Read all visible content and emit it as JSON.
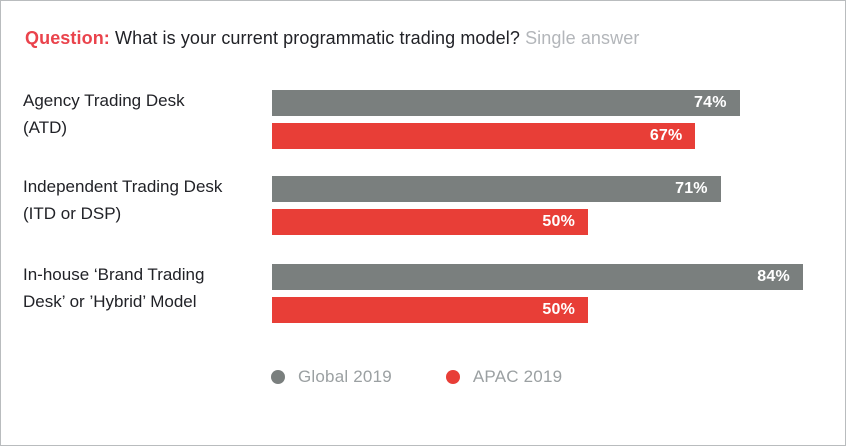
{
  "title": {
    "prefix": "Question:",
    "question": " What is your current programmatic trading model? ",
    "note": "Single answer"
  },
  "colors": {
    "title_red": "#ea434c",
    "text_dark": "#212227",
    "note_gray": "#b3b6ba",
    "legend_text_gray": "#9ba0a2",
    "global_gray": "#7a7f7e",
    "apac_red": "#e83e37",
    "page_border": "#b9bcbe"
  },
  "chart_data": {
    "type": "bar",
    "orientation": "horizontal",
    "title": "What is your current programmatic trading model?",
    "subtitle": "Single answer",
    "categories": [
      "Agency Trading Desk (ATD)",
      "Independent Trading Desk (ITD or DSP)",
      "In-house ‘Brand Trading Desk’ or ’Hybrid’ Model"
    ],
    "category_lines": [
      [
        "Agency Trading Desk",
        "(ATD)"
      ],
      [
        "Independent Trading Desk",
        "(ITD or DSP)"
      ],
      [
        "In-house ‘Brand Trading",
        "Desk’ or ’Hybrid’ Model"
      ]
    ],
    "series": [
      {
        "name": "Global 2019",
        "color": "#7a7f7e",
        "values": [
          74,
          71,
          84
        ]
      },
      {
        "name": "APAC 2019",
        "color": "#e83e37",
        "values": [
          67,
          50,
          50
        ]
      }
    ],
    "value_suffix": "%",
    "xlabel": "",
    "ylabel": "",
    "xlim": [
      0,
      100
    ],
    "grid": false,
    "value_labels": "inside-end",
    "legend_position": "bottom"
  }
}
